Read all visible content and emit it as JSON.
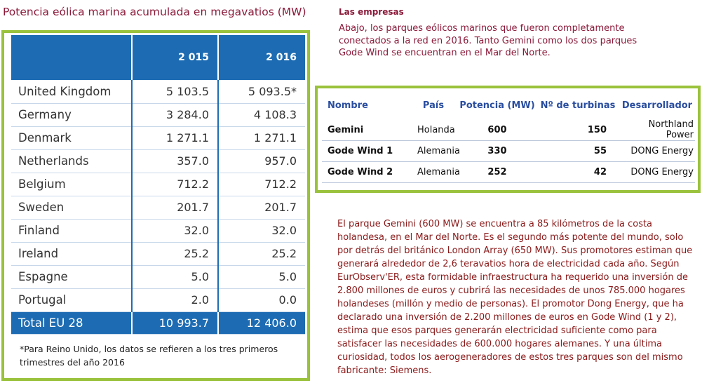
{
  "main_title": "Potencia eólica marina acumulada en megavatios (MW)",
  "mw_table": {
    "headers": [
      "",
      "2 015",
      "2 016"
    ],
    "rows": [
      {
        "country": "United Kingdom",
        "y2015": "5 103.5",
        "y2016": "5 093.5*"
      },
      {
        "country": "Germany",
        "y2015": "3 284.0",
        "y2016": "4 108.3"
      },
      {
        "country": "Denmark",
        "y2015": "1 271.1",
        "y2016": "1 271.1"
      },
      {
        "country": "Netherlands",
        "y2015": "357.0",
        "y2016": "957.0"
      },
      {
        "country": "Belgium",
        "y2015": "712.2",
        "y2016": "712.2"
      },
      {
        "country": "Sweden",
        "y2015": "201.7",
        "y2016": "201.7"
      },
      {
        "country": "Finland",
        "y2015": "32.0",
        "y2016": "32.0"
      },
      {
        "country": "Ireland",
        "y2015": "25.2",
        "y2016": "25.2"
      },
      {
        "country": "Espagne",
        "y2015": "5.0",
        "y2016": "5.0"
      },
      {
        "country": "Portugal",
        "y2015": "2.0",
        "y2016": "0.0"
      }
    ],
    "total": {
      "country": "Total EU 28",
      "y2015": "10 993.7",
      "y2016": "12 406.0"
    },
    "note": "*Para Reino Unido, los datos se refieren a los tres primeros trimestres del año 2016"
  },
  "empresas": {
    "title": "Las empresas",
    "text": "Abajo, los parques eólicos marinos que fueron completamente conectados a la red en 2016. Tanto Gemini como los dos parques Gode Wind se encuentran en el Mar del Norte."
  },
  "parks_table": {
    "headers": [
      "Nombre",
      "País",
      "Potencia (MW)",
      "Nº de turbinas",
      "Desarrollador"
    ],
    "rows": [
      {
        "nombre": "Gemini",
        "pais": "Holanda",
        "potencia": "600",
        "turbinas": "150",
        "desarrollador": "Northland Power"
      },
      {
        "nombre": "Gode Wind 1",
        "pais": "Alemania",
        "potencia": "330",
        "turbinas": "55",
        "desarrollador": "DONG Energy"
      },
      {
        "nombre": "Gode Wind 2",
        "pais": "Alemania",
        "potencia": "252",
        "turbinas": "42",
        "desarrollador": "DONG Energy"
      }
    ]
  },
  "paragraph": "El parque Gemini (600 MW) se encuentra a 85 kilómetros de la costa holandesa, en el Mar del Norte. Es el segundo más potente del mundo, solo por detrás del británico London Array (650 MW). Sus promotores estiman que generará alrededor de 2,6 teravatios hora de electricidad cada año. Según EurObserv'ER, esta formidable infraestructura ha requerido una inversión de 2.800 millones de euros y cubrirá las necesidades de unos 785.000 hogares holandeses (millón y medio de personas). El promotor Dong Energy, que ha declarado una inversión de 2.200 millones de euros en Gode Wind (1 y 2), estima que esos parques generarán electricidad suficiente como para satisfacer las necesidades de 600.000 hogares alemanes. Y una última curiosidad, todos los aerogeneradores de estos tres parques son del mismo fabricante: Siemens.",
  "colors": {
    "accent_green": "#9ac23c",
    "header_blue": "#1d6cb3",
    "text_maroon": "#8b1a3a"
  }
}
